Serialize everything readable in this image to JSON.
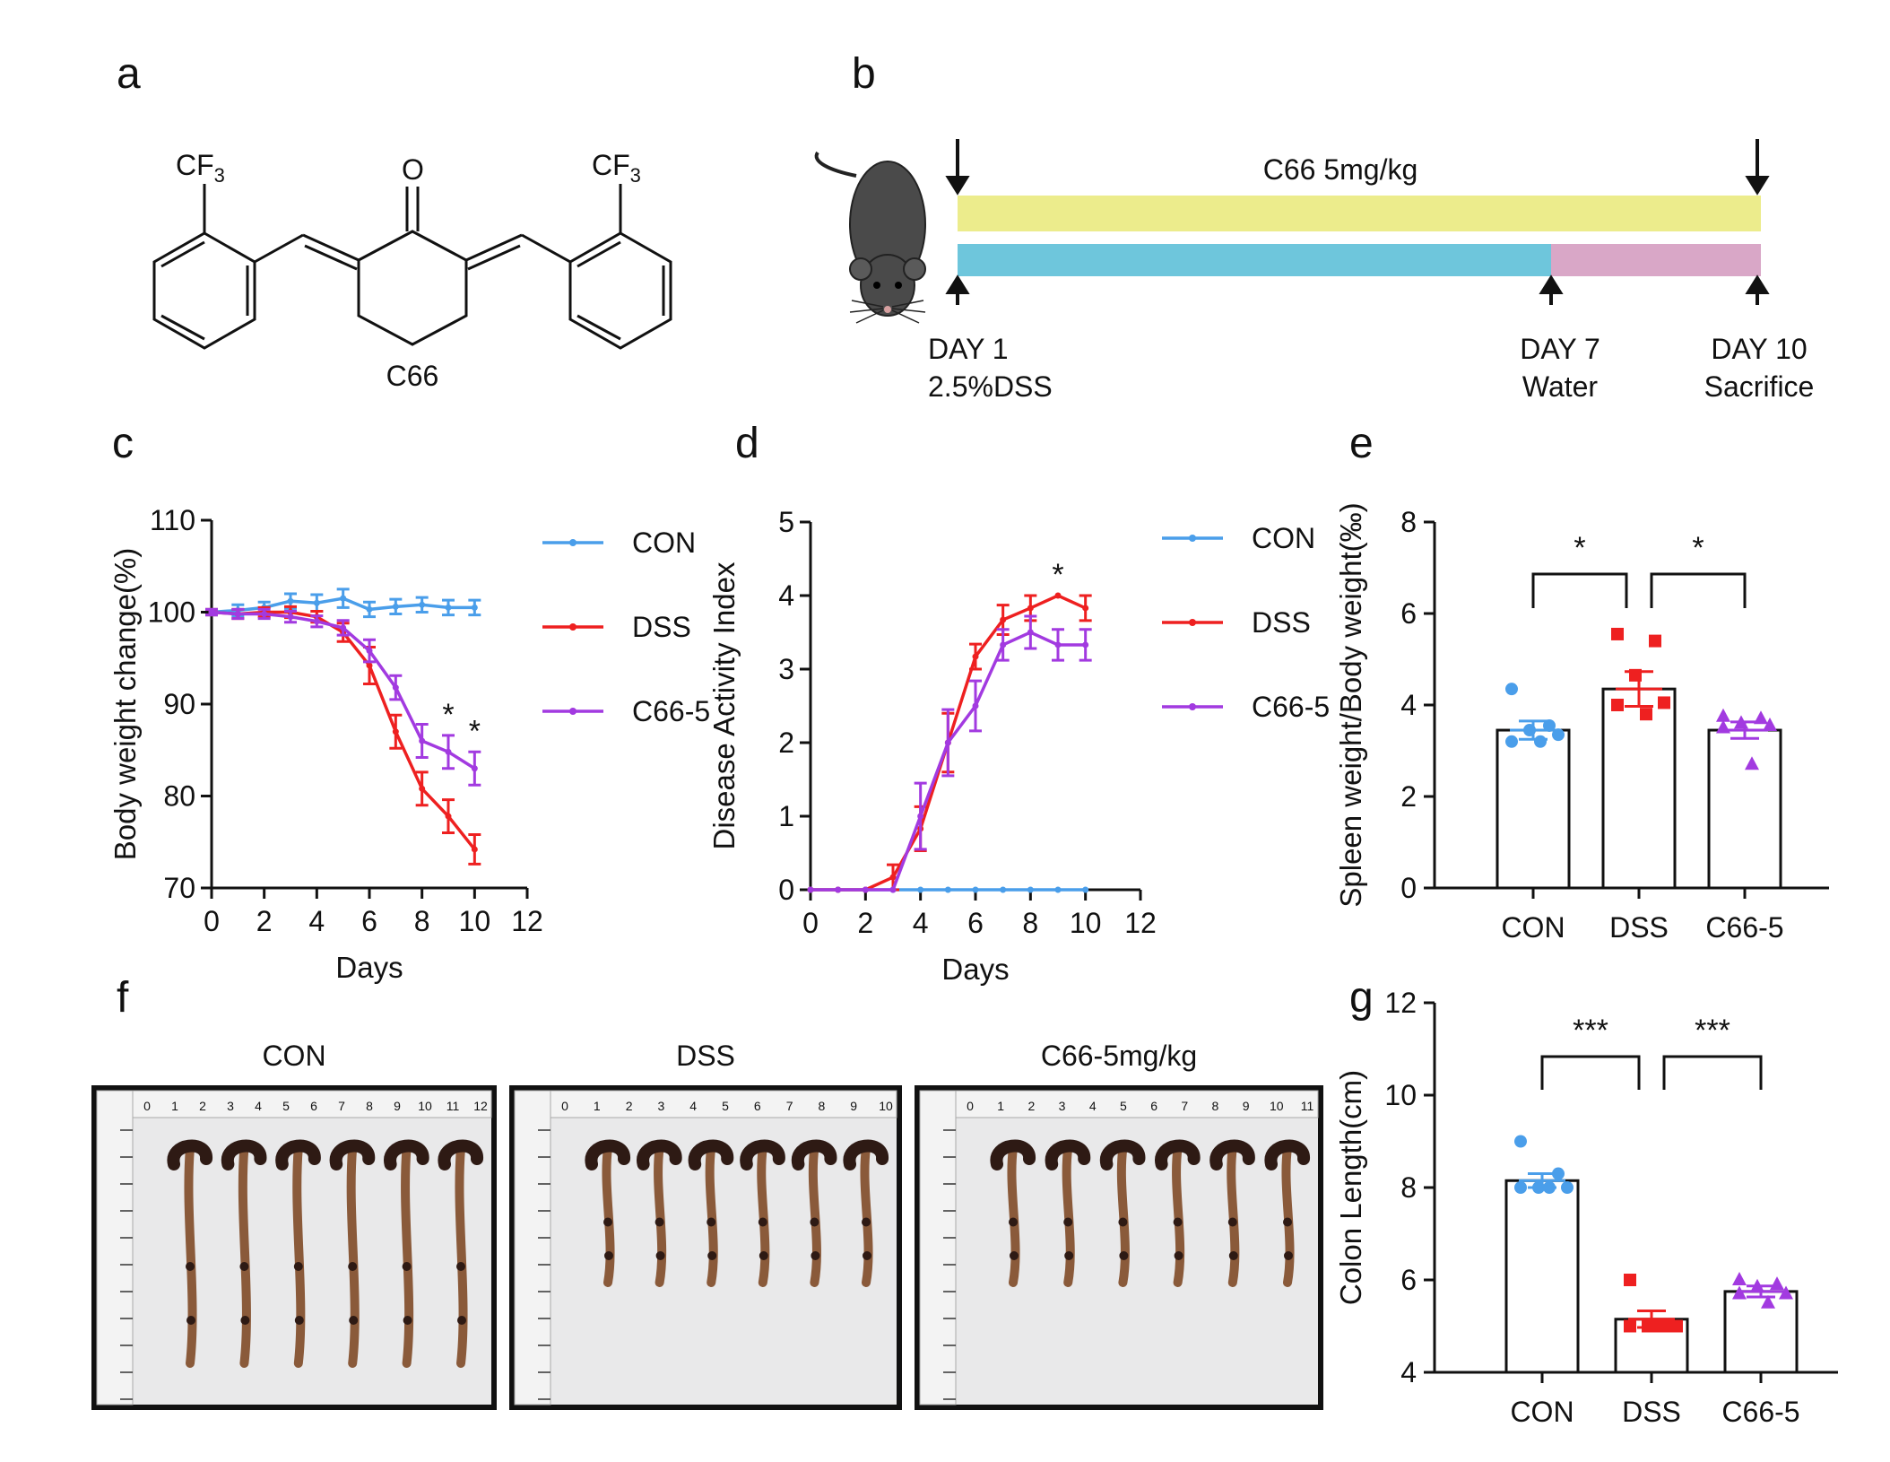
{
  "panel_letters": {
    "a": "a",
    "b": "b",
    "c": "c",
    "d": "d",
    "e": "e",
    "f": "f",
    "g": "g"
  },
  "structure": {
    "compound_label": "C66",
    "cf3_left": "CF",
    "cf3_right": "CF",
    "subscript": "3",
    "carbonyl": "O"
  },
  "timeline": {
    "drug_label": "C66 5mg/kg",
    "day1": "DAY 1",
    "day1_sub": "2.5%DSS",
    "day7": "DAY 7",
    "day7_sub": "Water",
    "day10": "DAY 10",
    "day10_sub": "Sacrifice",
    "colors": {
      "drug": "#ecec8c",
      "dss": "#6ec6dc",
      "water": "#d9a7c7",
      "mouse": "#4a4a4a"
    }
  },
  "photos": {
    "labels": [
      "CON",
      "DSS",
      "C66-5mg/kg"
    ],
    "ruler_numbers_1": [
      "0",
      "1",
      "2",
      "3",
      "4",
      "5",
      "6",
      "7",
      "8",
      "9",
      "10",
      "11",
      "12"
    ],
    "ruler_numbers_2": [
      "0",
      "1",
      "2",
      "3",
      "4",
      "5",
      "6",
      "7",
      "8",
      "9",
      "10"
    ],
    "ruler_numbers_3": [
      "0",
      "1",
      "2",
      "3",
      "4",
      "5",
      "6",
      "7",
      "8",
      "9",
      "10",
      "11"
    ],
    "colon_color": "#8a5a3a",
    "colon_dark": "#2e1a14"
  },
  "chart_data": [
    {
      "id": "c",
      "type": "line",
      "xlabel": "Days",
      "ylabel": "Body weight change(%)",
      "xlim": [
        0,
        12
      ],
      "ylim": [
        70,
        110
      ],
      "xticks": [
        "0",
        "2",
        "4",
        "6",
        "8",
        "10",
        "12"
      ],
      "yticks": [
        "70",
        "80",
        "90",
        "100",
        "110"
      ],
      "x": [
        0,
        1,
        2,
        3,
        4,
        5,
        6,
        7,
        8,
        9,
        10
      ],
      "series": [
        {
          "name": "CON",
          "color": "#4a9eea",
          "values": [
            100,
            100.2,
            100.5,
            101.2,
            101.0,
            101.5,
            100.3,
            100.6,
            100.8,
            100.5,
            100.5
          ],
          "err": [
            0.3,
            0.6,
            0.6,
            0.8,
            0.9,
            1.0,
            0.8,
            0.8,
            0.8,
            0.8,
            0.8
          ]
        },
        {
          "name": "DSS",
          "color": "#ee2020",
          "values": [
            100,
            99.8,
            100,
            100,
            99.5,
            97.8,
            94.2,
            87.0,
            80.8,
            77.8,
            74.2
          ],
          "err": [
            0.3,
            0.5,
            0.5,
            0.6,
            0.6,
            1.0,
            2.0,
            1.8,
            1.8,
            1.8,
            1.6
          ]
        },
        {
          "name": "C66-5",
          "color": "#a23ae0",
          "values": [
            100,
            99.8,
            99.8,
            99.5,
            99.0,
            98.3,
            95.8,
            91.8,
            86.0,
            84.8,
            83.0
          ],
          "err": [
            0.3,
            0.5,
            0.5,
            0.6,
            0.6,
            0.8,
            1.2,
            1.3,
            1.8,
            1.8,
            1.8
          ]
        }
      ],
      "annotations": [
        {
          "x": 9,
          "text": "*"
        },
        {
          "x": 10,
          "text": "*"
        }
      ]
    },
    {
      "id": "d",
      "type": "line",
      "xlabel": "Days",
      "ylabel": "Disease Activity Index",
      "xlim": [
        0,
        12
      ],
      "ylim": [
        0,
        5
      ],
      "xticks": [
        "0",
        "2",
        "4",
        "6",
        "8",
        "10",
        "12"
      ],
      "yticks": [
        "0",
        "1",
        "2",
        "3",
        "4",
        "5"
      ],
      "x": [
        0,
        1,
        2,
        3,
        4,
        5,
        6,
        7,
        8,
        9,
        10
      ],
      "series": [
        {
          "name": "CON",
          "color": "#4a9eea",
          "values": [
            0,
            0,
            0,
            0,
            0,
            0,
            0,
            0,
            0,
            0,
            0
          ],
          "err": [
            0,
            0,
            0,
            0,
            0,
            0,
            0,
            0,
            0,
            0,
            0
          ]
        },
        {
          "name": "DSS",
          "color": "#ee2020",
          "values": [
            0,
            0,
            0,
            0.17,
            0.83,
            2.0,
            3.17,
            3.67,
            3.83,
            4.0,
            3.83
          ],
          "err": [
            0,
            0,
            0,
            0.17,
            0.3,
            0.4,
            0.17,
            0.2,
            0.17,
            0,
            0.17
          ]
        },
        {
          "name": "C66-5",
          "color": "#a23ae0",
          "values": [
            0,
            0,
            0,
            0.0,
            1.0,
            2.0,
            2.5,
            3.33,
            3.5,
            3.33,
            3.33
          ],
          "err": [
            0,
            0,
            0,
            0,
            0.45,
            0.45,
            0.34,
            0.21,
            0.22,
            0.21,
            0.21
          ]
        }
      ],
      "annotations": [
        {
          "x": 9,
          "text": "*"
        }
      ]
    },
    {
      "id": "e",
      "type": "bar",
      "ylabel": "Spleen weight/Body weight(‰)",
      "categories": [
        "CON",
        "DSS",
        "C66-5"
      ],
      "values": [
        3.45,
        4.35,
        3.45
      ],
      "err": [
        0.2,
        0.38,
        0.18
      ],
      "colors": [
        "#4a9eea",
        "#ee2020",
        "#a23ae0"
      ],
      "markers": [
        "circle",
        "square",
        "triangle"
      ],
      "points": [
        [
          4.35,
          3.55,
          3.45,
          3.35,
          3.2,
          3.2
        ],
        [
          5.55,
          5.4,
          4.65,
          4.05,
          4.0,
          3.8
        ],
        [
          3.75,
          3.7,
          3.6,
          3.55,
          3.5,
          2.7
        ]
      ],
      "ylim": [
        0,
        8
      ],
      "yticks": [
        "0",
        "2",
        "4",
        "6",
        "8"
      ],
      "significance": [
        {
          "from": 0,
          "to": 1,
          "text": "*"
        },
        {
          "from": 1,
          "to": 2,
          "text": "*"
        }
      ]
    },
    {
      "id": "g",
      "type": "bar",
      "ylabel": "Colon Length(cm)",
      "categories": [
        "CON",
        "DSS",
        "C66-5"
      ],
      "values": [
        8.15,
        5.15,
        5.75
      ],
      "err": [
        0.15,
        0.18,
        0.12
      ],
      "colors": [
        "#4a9eea",
        "#ee2020",
        "#a23ae0"
      ],
      "markers": [
        "circle",
        "square",
        "triangle"
      ],
      "points": [
        [
          9.0,
          8.3,
          8.0,
          8.0,
          8.0,
          8.0
        ],
        [
          6.0,
          5.0,
          5.0,
          5.0,
          5.0,
          5.0
        ],
        [
          6.0,
          5.9,
          5.85,
          5.7,
          5.7,
          5.5
        ]
      ],
      "ylim": [
        4,
        12
      ],
      "yticks": [
        "4",
        "6",
        "8",
        "10",
        "12"
      ],
      "significance": [
        {
          "from": 0,
          "to": 1,
          "text": "***"
        },
        {
          "from": 1,
          "to": 2,
          "text": "***"
        }
      ]
    }
  ]
}
